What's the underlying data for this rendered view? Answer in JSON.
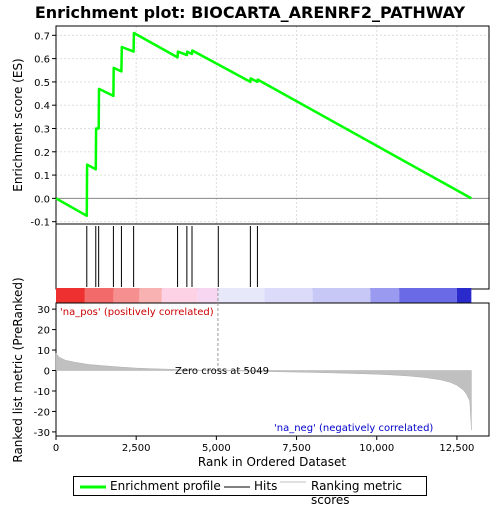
{
  "chart_data": {
    "type": "line",
    "title": "Enrichment plot: BIOCARTA_ARENRF2_PATHWAY",
    "top_panel": {
      "ylabel": "Enrichment score (ES)",
      "ylim": [
        -0.11,
        0.74
      ],
      "yticks": [
        -0.1,
        0.0,
        0.1,
        0.2,
        0.3,
        0.4,
        0.5,
        0.6,
        0.7
      ],
      "ytick_labels": [
        "-0.1",
        "0.0",
        "0.1",
        "0.2",
        "0.3",
        "0.4",
        "0.5",
        "0.6",
        "0.7"
      ],
      "series": [
        {
          "name": "Enrichment profile",
          "color": "#00ff00",
          "x": [
            0,
            960,
            970,
            1240,
            1250,
            1330,
            1340,
            1790,
            1800,
            2040,
            2050,
            2420,
            2430,
            3790,
            3800,
            4080,
            4090,
            4240,
            4250,
            6060,
            6070,
            6280,
            6290,
            12950
          ],
          "y": [
            0.0,
            -0.075,
            0.145,
            0.125,
            0.3,
            0.3,
            0.47,
            0.44,
            0.56,
            0.545,
            0.65,
            0.63,
            0.71,
            0.605,
            0.63,
            0.615,
            0.63,
            0.62,
            0.635,
            0.5,
            0.515,
            0.5,
            0.51,
            0.0
          ]
        }
      ]
    },
    "hits": {
      "name": "Hits",
      "x": [
        960,
        1240,
        1330,
        1790,
        2040,
        2420,
        3790,
        4080,
        4240,
        5060,
        6060,
        6280
      ]
    },
    "bottom_panel": {
      "ylabel": "Ranked list metric (PreRanked)",
      "xlabel": "Rank in Ordered Dataset",
      "xlim": [
        0,
        13500
      ],
      "ylim": [
        -32,
        33
      ],
      "xticks": [
        0,
        2500,
        5000,
        7500,
        10000,
        12500
      ],
      "xtick_labels": [
        "0",
        "2,500",
        "5,000",
        "7,500",
        "10,000",
        "12,500"
      ],
      "yticks": [
        -30,
        -20,
        -10,
        0,
        10,
        20,
        30
      ],
      "ytick_labels": [
        "-30",
        "-20",
        "-10",
        "0",
        "10",
        "20",
        "30"
      ],
      "series": [
        {
          "name": "Ranking metric scores",
          "color": "#c0c0c0",
          "x": [
            0,
            100,
            300,
            600,
            1000,
            1500,
            2000,
            2500,
            3000,
            4000,
            5049,
            6000,
            7000,
            8000,
            9000,
            10000,
            10500,
            11000,
            11500,
            12000,
            12300,
            12500,
            12700,
            12800,
            12900,
            12950
          ],
          "y": [
            8.5,
            6.5,
            5.0,
            4.0,
            3.0,
            2.3,
            1.7,
            1.2,
            0.9,
            0.4,
            0.0,
            -0.3,
            -0.6,
            -0.9,
            -1.3,
            -1.8,
            -2.2,
            -2.7,
            -3.4,
            -4.6,
            -5.8,
            -7.2,
            -9.5,
            -11.5,
            -15.0,
            -29.0
          ]
        }
      ],
      "annotations": [
        {
          "text": "'na_pos' (positively correlated)",
          "color": "#cc0000"
        },
        {
          "text": "Zero cross at 5049",
          "color": "#000000"
        },
        {
          "text": "'na_neg' (negatively correlated)",
          "color": "#0000cc"
        }
      ]
    },
    "legend": {
      "placement": "bottom",
      "entries": [
        "Enrichment profile",
        "Hits",
        "Ranking metric scores"
      ]
    },
    "colors": {
      "profile": "#00ff00",
      "hits": "#000000",
      "metric": "#c0c0c0",
      "grid": "#dddddd"
    }
  }
}
